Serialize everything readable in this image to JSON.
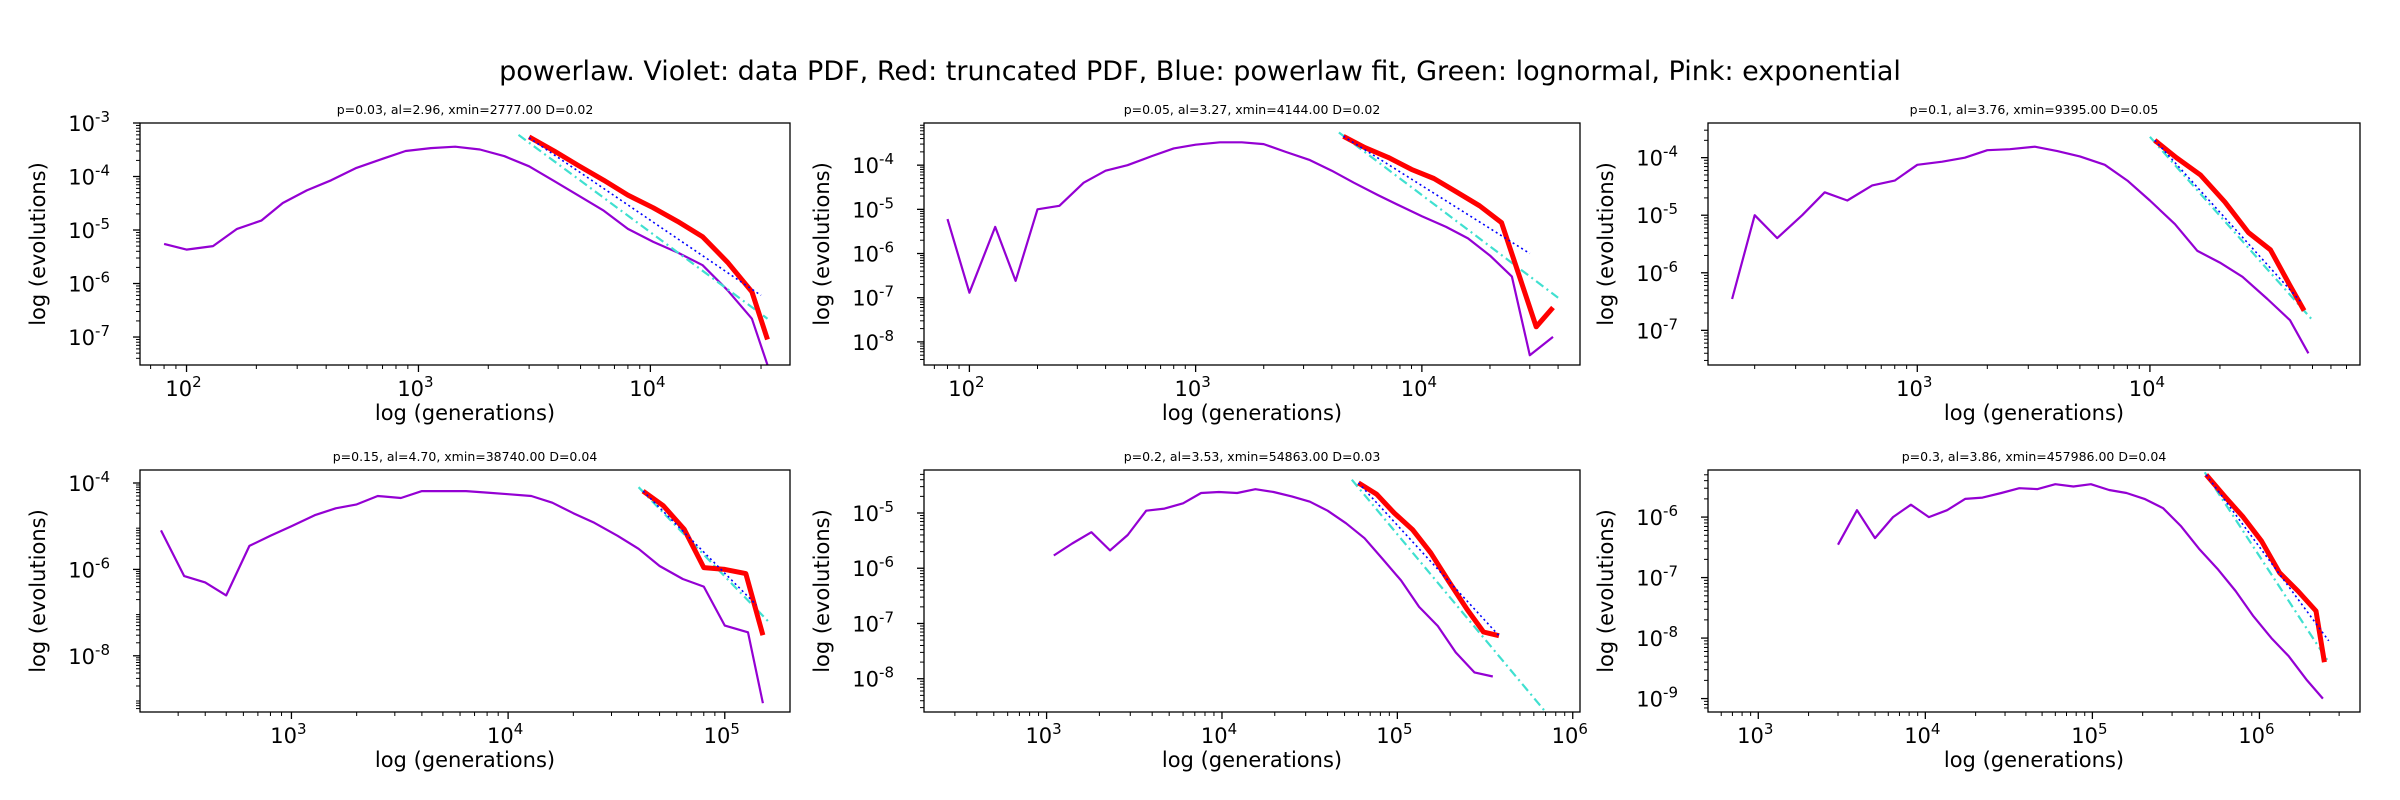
{
  "suptitle": "powerlaw. Violet: data PDF, Red: truncated PDF, Blue: powerlaw fit, Green: lognormal, Pink: exponential",
  "colors": {
    "data_pdf": "#9400d3",
    "truncated_pdf": "#ff0000",
    "powerlaw_fit": "#0000ff",
    "lognormal": "#40e0d0",
    "exponential": "#ff69b4"
  },
  "chart_data": [
    {
      "type": "line",
      "title": "p=0.03, al=2.96, xmin=2777.00 D=0.02",
      "xlabel": "log (generations)",
      "ylabel": "log (evolutions)",
      "xscale": "log",
      "yscale": "log",
      "xlim": [
        63,
        40000
      ],
      "ylim": [
        3e-08,
        0.001
      ],
      "xticks": [
        100,
        1000,
        10000
      ],
      "yticks": [
        1e-07,
        1e-06,
        1e-05,
        0.0001,
        0.001
      ],
      "grid": false,
      "series": [
        {
          "key": "data_pdf",
          "x": [
            80,
            100,
            130,
            165,
            210,
            260,
            330,
            420,
            540,
            690,
            880,
            1130,
            1440,
            1840,
            2350,
            3000,
            3850,
            4900,
            6300,
            8000,
            10300,
            13100,
            16800,
            21500,
            27400,
            32000
          ],
          "y": [
            5.5e-06,
            4.3e-06,
            5e-06,
            1.05e-05,
            1.5e-05,
            3.2e-05,
            5.5e-05,
            8.5e-05,
            0.000145,
            0.00021,
            0.0003,
            0.00034,
            0.00036,
            0.00032,
            0.00024,
            0.000155,
            8.2e-05,
            4.4e-05,
            2.3e-05,
            1.05e-05,
            6e-06,
            3.8e-06,
            2.2e-06,
            7.5e-07,
            2.2e-07,
            3e-08
          ]
        },
        {
          "key": "truncated_pdf",
          "x": [
            3000,
            3850,
            4900,
            6300,
            8000,
            10300,
            13100,
            16800,
            21500,
            27400,
            32000
          ],
          "y": [
            0.00055,
            0.0003,
            0.00016,
            8.5e-05,
            4.5e-05,
            2.6e-05,
            1.45e-05,
            7.5e-06,
            2.5e-06,
            7e-07,
            9e-08
          ]
        },
        {
          "key": "lognormal",
          "x": [
            2700,
            32000
          ],
          "y": [
            0.0006,
            2.2e-07
          ]
        },
        {
          "key": "powerlaw_fit",
          "x": [
            3000,
            30000
          ],
          "y": [
            0.00053,
            6e-07
          ]
        }
      ]
    },
    {
      "type": "line",
      "title": "p=0.05, al=3.27, xmin=4144.00 D=0.02",
      "xlabel": "log (generations)",
      "ylabel": "log (evolutions)",
      "xscale": "log",
      "yscale": "log",
      "xlim": [
        63,
        50000
      ],
      "ylim": [
        3e-09,
        0.0009
      ],
      "xticks": [
        100,
        1000,
        10000
      ],
      "yticks": [
        1e-08,
        1e-07,
        1e-06,
        1e-05,
        0.0001
      ],
      "grid": false,
      "series": [
        {
          "key": "data_pdf",
          "x": [
            80,
            100,
            130,
            160,
            200,
            250,
            320,
            400,
            500,
            640,
            800,
            1000,
            1280,
            1600,
            2000,
            2500,
            3200,
            4000,
            5000,
            6400,
            8000,
            10000,
            12800,
            16000,
            20000,
            25000,
            30000,
            38000
          ],
          "y": [
            6e-06,
            1.3e-07,
            4e-06,
            2.4e-07,
            1e-05,
            1.2e-05,
            4e-05,
            7.5e-05,
            0.0001,
            0.00016,
            0.00024,
            0.00029,
            0.00033,
            0.00033,
            0.0003,
            0.0002,
            0.00013,
            7.5e-05,
            4e-05,
            2.1e-05,
            1.2e-05,
            7e-06,
            4e-06,
            2.2e-06,
            9e-07,
            3e-07,
            5e-09,
            1.3e-08
          ]
        },
        {
          "key": "truncated_pdf",
          "x": [
            4500,
            5600,
            7100,
            9000,
            11300,
            14200,
            18000,
            22500,
            27000,
            32000,
            38000
          ],
          "y": [
            0.00045,
            0.00025,
            0.00015,
            8e-05,
            5e-05,
            2.5e-05,
            1.2e-05,
            5e-06,
            3e-07,
            2.2e-08,
            6e-08
          ]
        },
        {
          "key": "lognormal",
          "x": [
            4300,
            40000
          ],
          "y": [
            0.00055,
            1e-07
          ]
        },
        {
          "key": "powerlaw_fit",
          "x": [
            4500,
            30000
          ],
          "y": [
            0.00045,
            1e-06
          ]
        }
      ]
    },
    {
      "type": "line",
      "title": "p=0.1, al=3.76, xmin=9395.00 D=0.05",
      "xlabel": "log (generations)",
      "ylabel": "log (evolutions)",
      "xscale": "log",
      "yscale": "log",
      "xlim": [
        126,
        80000
      ],
      "ylim": [
        2.5e-08,
        0.0004
      ],
      "xticks": [
        1000,
        10000
      ],
      "yticks": [
        1e-07,
        1e-06,
        1e-05,
        0.0001
      ],
      "grid": false,
      "series": [
        {
          "key": "data_pdf",
          "x": [
            160,
            200,
            250,
            320,
            400,
            500,
            640,
            800,
            1000,
            1280,
            1600,
            2000,
            2500,
            3200,
            4000,
            5000,
            6400,
            8000,
            10000,
            12800,
            16000,
            20000,
            25000,
            32000,
            40000,
            48000
          ],
          "y": [
            3.5e-07,
            1e-05,
            4e-06,
            1e-05,
            2.5e-05,
            1.8e-05,
            3.3e-05,
            4e-05,
            7.5e-05,
            8.5e-05,
            0.0001,
            0.000135,
            0.00014,
            0.000155,
            0.00013,
            0.000105,
            7.5e-05,
            4e-05,
            1.8e-05,
            7e-06,
            2.4e-06,
            1.5e-06,
            8.5e-07,
            3.5e-07,
            1.5e-07,
            4e-08
          ]
        },
        {
          "key": "truncated_pdf",
          "x": [
            10500,
            13000,
            16500,
            21000,
            26500,
            33000,
            40000,
            46000
          ],
          "y": [
            0.0002,
            0.0001,
            5e-05,
            1.7e-05,
            5e-06,
            2.5e-06,
            6e-07,
            2.2e-07
          ]
        },
        {
          "key": "lognormal",
          "x": [
            10000,
            50000
          ],
          "y": [
            0.00023,
            1.5e-07
          ]
        },
        {
          "key": "powerlaw_fit",
          "x": [
            10500,
            45000
          ],
          "y": [
            0.0002,
            3e-07
          ]
        }
      ]
    },
    {
      "type": "line",
      "title": "p=0.15, al=4.70, xmin=38740.00 D=0.04",
      "xlabel": "log (generations)",
      "ylabel": "log (evolutions)",
      "xscale": "log",
      "yscale": "log",
      "xlim": [
        200,
        200000
      ],
      "ylim": [
        5e-10,
        0.0002
      ],
      "xticks": [
        1000,
        10000,
        100000
      ],
      "yticks": [
        1e-08,
        1e-06,
        0.0001
      ],
      "grid": false,
      "series": [
        {
          "key": "data_pdf",
          "x": [
            250,
            320,
            400,
            500,
            640,
            800,
            1000,
            1280,
            1600,
            2000,
            2500,
            3200,
            4000,
            5000,
            6400,
            8000,
            10000,
            12800,
            16000,
            20000,
            25000,
            32000,
            40000,
            50000,
            64000,
            80000,
            100000,
            128000,
            150000
          ],
          "y": [
            8e-06,
            7e-07,
            5e-07,
            2.5e-07,
            3.5e-06,
            6e-06,
            1e-05,
            1.8e-05,
            2.6e-05,
            3.2e-05,
            5e-05,
            4.5e-05,
            6.5e-05,
            6.5e-05,
            6.5e-05,
            6e-05,
            5.5e-05,
            5e-05,
            3.5e-05,
            2e-05,
            1.2e-05,
            6e-06,
            3e-06,
            1.2e-06,
            6e-07,
            4e-07,
            5e-08,
            3.5e-08,
            8e-10
          ]
        },
        {
          "key": "truncated_pdf",
          "x": [
            42000,
            52000,
            65000,
            80000,
            100000,
            125000,
            150000
          ],
          "y": [
            6.5e-05,
            3e-05,
            8.5e-06,
            1.1e-06,
            1e-06,
            8e-07,
            3e-08
          ]
        },
        {
          "key": "lognormal",
          "x": [
            40000,
            160000
          ],
          "y": [
            8e-05,
            6e-08
          ]
        },
        {
          "key": "powerlaw_fit",
          "x": [
            42000,
            140000
          ],
          "y": [
            6.5e-05,
            1.5e-07
          ]
        }
      ]
    },
    {
      "type": "line",
      "title": "p=0.2, al=3.53, xmin=54863.00 D=0.03",
      "xlabel": "log (generations)",
      "ylabel": "log (evolutions)",
      "xscale": "log",
      "yscale": "log",
      "xlim": [
        200,
        1100000
      ],
      "ylim": [
        2.5e-09,
        6e-05
      ],
      "xticks": [
        1000,
        10000,
        100000,
        1000000
      ],
      "yticks": [
        1e-08,
        1e-07,
        1e-06,
        1e-05
      ],
      "grid": false,
      "series": [
        {
          "key": "data_pdf",
          "x": [
            1100,
            1400,
            1800,
            2300,
            2900,
            3700,
            4700,
            6000,
            7600,
            9600,
            12200,
            15500,
            19700,
            25000,
            31700,
            40000,
            51000,
            65000,
            82000,
            105000,
            133000,
            170000,
            215000,
            275000,
            350000
          ],
          "y": [
            1.7e-06,
            2.8e-06,
            4.5e-06,
            2.1e-06,
            4e-06,
            1.1e-05,
            1.2e-05,
            1.5e-05,
            2.3e-05,
            2.4e-05,
            2.3e-05,
            2.7e-05,
            2.4e-05,
            2e-05,
            1.6e-05,
            1.1e-05,
            6.5e-06,
            3.5e-06,
            1.5e-06,
            6e-07,
            2e-07,
            9e-08,
            3e-08,
            1.3e-08,
            1.1e-08
          ]
        },
        {
          "key": "truncated_pdf",
          "x": [
            60000,
            76000,
            96000,
            122000,
            155000,
            195000,
            250000,
            310000,
            380000
          ],
          "y": [
            3.5e-05,
            2.2e-05,
            1e-05,
            5e-06,
            1.9e-06,
            6e-07,
            1.8e-07,
            7e-08,
            6e-08
          ]
        },
        {
          "key": "lognormal",
          "x": [
            55000,
            700000
          ],
          "y": [
            4e-05,
            2.5e-09
          ]
        },
        {
          "key": "powerlaw_fit",
          "x": [
            60000,
            380000
          ],
          "y": [
            3.5e-05,
            6e-08
          ]
        }
      ]
    },
    {
      "type": "line",
      "title": "p=0.3, al=3.86, xmin=457986.00 D=0.04",
      "xlabel": "log (generations)",
      "ylabel": "log (evolutions)",
      "xscale": "log",
      "yscale": "log",
      "xlim": [
        500,
        4000000
      ],
      "ylim": [
        6e-10,
        6e-06
      ],
      "xticks": [
        1000,
        10000,
        100000,
        1000000
      ],
      "yticks": [
        1e-09,
        1e-08,
        1e-07,
        1e-06
      ],
      "grid": false,
      "series": [
        {
          "key": "data_pdf",
          "x": [
            3000,
            3900,
            5000,
            6400,
            8200,
            10500,
            13500,
            17300,
            22000,
            28500,
            36500,
            47000,
            60000,
            77000,
            98000,
            126000,
            160000,
            205000,
            265000,
            340000,
            435000,
            560000,
            720000,
            920000,
            1180000,
            1500000,
            1930000,
            2400000
          ],
          "y": [
            3.5e-07,
            1.3e-06,
            4.5e-07,
            1e-06,
            1.6e-06,
            1e-06,
            1.3e-06,
            2e-06,
            2.1e-06,
            2.5e-06,
            3e-06,
            2.9e-06,
            3.5e-06,
            3.2e-06,
            3.5e-06,
            2.8e-06,
            2.5e-06,
            2e-06,
            1.4e-06,
            7e-07,
            3e-07,
            1.4e-07,
            6e-08,
            2.3e-08,
            1e-08,
            5e-09,
            2e-09,
            1e-09
          ]
        },
        {
          "key": "truncated_pdf",
          "x": [
            480000,
            620000,
            800000,
            1030000,
            1320000,
            1700000,
            2180000,
            2450000
          ],
          "y": [
            5e-06,
            2.2e-06,
            1e-06,
            4e-07,
            1.2e-07,
            6e-08,
            2.8e-08,
            4e-09
          ]
        },
        {
          "key": "lognormal",
          "x": [
            470000,
            2600000
          ],
          "y": [
            5.5e-06,
            4e-09
          ]
        },
        {
          "key": "powerlaw_fit",
          "x": [
            480000,
            2600000
          ],
          "y": [
            5e-06,
            9e-09
          ]
        }
      ]
    }
  ]
}
